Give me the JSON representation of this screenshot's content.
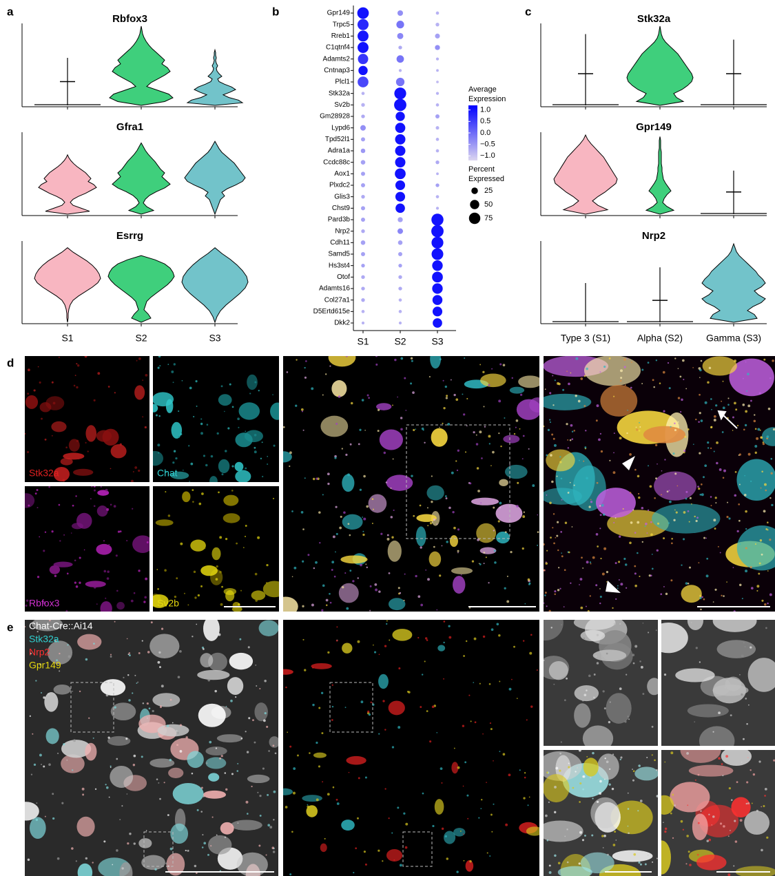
{
  "panels": {
    "a": {
      "label": "a",
      "titles": [
        "Rbfox3",
        "Gfra1",
        "Esrrg"
      ],
      "categories": [
        "S1",
        "S2",
        "S3"
      ]
    },
    "b": {
      "label": "b",
      "type": "dotplot",
      "genes": [
        "Gpr149",
        "Trpc5",
        "Rreb1",
        "C1qtnf4",
        "Adamts2",
        "Cntnap3",
        "Plcl1",
        "Stk32a",
        "Sv2b",
        "Gm28928",
        "Lypd6",
        "Tpd52l1",
        "Adra1a",
        "Ccdc88c",
        "Aox1",
        "Plxdc2",
        "Glis3",
        "Chst9",
        "Pard3b",
        "Nrp2",
        "Cdh11",
        "Samd5",
        "Hs3st4",
        "Otof",
        "Adamts16",
        "Col27a1",
        "D5Ertd615e",
        "Dkk2"
      ],
      "categories": [
        "S1",
        "S2",
        "S3"
      ],
      "percent": [
        [
          78,
          18,
          6
        ],
        [
          72,
          35,
          8
        ],
        [
          70,
          22,
          14
        ],
        [
          70,
          8,
          15
        ],
        [
          62,
          32,
          5
        ],
        [
          50,
          5,
          4
        ],
        [
          68,
          42,
          4
        ],
        [
          6,
          82,
          5
        ],
        [
          8,
          88,
          6
        ],
        [
          8,
          50,
          10
        ],
        [
          18,
          60,
          7
        ],
        [
          10,
          62,
          6
        ],
        [
          12,
          62,
          6
        ],
        [
          12,
          62,
          8
        ],
        [
          10,
          68,
          4
        ],
        [
          10,
          55,
          8
        ],
        [
          8,
          55,
          6
        ],
        [
          10,
          52,
          5
        ],
        [
          10,
          15,
          85
        ],
        [
          8,
          18,
          88
        ],
        [
          12,
          12,
          82
        ],
        [
          10,
          10,
          80
        ],
        [
          8,
          8,
          65
        ],
        [
          8,
          8,
          68
        ],
        [
          8,
          8,
          65
        ],
        [
          8,
          6,
          58
        ],
        [
          6,
          6,
          55
        ],
        [
          5,
          5,
          52
        ]
      ],
      "expression": [
        [
          1.0,
          -0.4,
          -0.8
        ],
        [
          0.75,
          -0.1,
          -0.8
        ],
        [
          0.95,
          -0.3,
          -0.6
        ],
        [
          1.0,
          -0.7,
          -0.4
        ],
        [
          0.6,
          -0.1,
          -0.8
        ],
        [
          1.0,
          -0.8,
          -0.8
        ],
        [
          0.4,
          -0.1,
          -0.9
        ],
        [
          -0.8,
          1.0,
          -0.8
        ],
        [
          -0.8,
          1.0,
          -0.8
        ],
        [
          -0.7,
          1.0,
          -0.6
        ],
        [
          -0.4,
          1.0,
          -0.8
        ],
        [
          -0.6,
          1.0,
          -0.8
        ],
        [
          -0.5,
          1.0,
          -0.8
        ],
        [
          -0.6,
          1.0,
          -0.7
        ],
        [
          -0.6,
          1.0,
          -0.8
        ],
        [
          -0.6,
          1.0,
          -0.6
        ],
        [
          -0.7,
          1.0,
          -0.8
        ],
        [
          -0.6,
          1.0,
          -0.8
        ],
        [
          -0.6,
          -0.6,
          1.0
        ],
        [
          -0.7,
          -0.3,
          1.0
        ],
        [
          -0.6,
          -0.6,
          1.0
        ],
        [
          -0.6,
          -0.6,
          1.0
        ],
        [
          -0.6,
          -0.6,
          1.0
        ],
        [
          -0.7,
          -0.7,
          1.0
        ],
        [
          -0.7,
          -0.7,
          1.0
        ],
        [
          -0.7,
          -0.8,
          1.0
        ],
        [
          -0.8,
          -0.8,
          1.0
        ],
        [
          -0.8,
          -0.8,
          1.0
        ]
      ],
      "color_legend": {
        "title": [
          "Average",
          "Expression"
        ],
        "lim": [
          -1.2,
          1.2
        ],
        "low_color": "#dcd6f0",
        "high_color": "#0000ff",
        "ticks": [
          {
            "value": 1,
            "label": "1.0"
          },
          0.5,
          {
            "value": 0,
            "label": "0.0"
          },
          {
            "value": -0.5,
            "label": "−0.5"
          },
          {
            "value": -1,
            "label": "−1.0"
          }
        ]
      },
      "size_legend": {
        "title": [
          "Percent",
          "Expressed"
        ],
        "ticks": [
          25,
          50,
          75
        ]
      }
    },
    "c": {
      "label": "c",
      "titles": [
        "Stk32a",
        "Gpr149",
        "Nrp2"
      ],
      "categories": [
        "Type 3 (S1)",
        "Alpha (S2)",
        "Gamma (S3)"
      ]
    },
    "d": {
      "label": "d",
      "image_labels": [
        "Stk32a",
        "Chat",
        "Rbfox3",
        "Sv2b"
      ]
    },
    "e": {
      "label": "e",
      "image_labels": [
        "Chat-Cre::Ai14",
        "Stk32a",
        "Nrp2",
        "Gpr149"
      ]
    }
  }
}
